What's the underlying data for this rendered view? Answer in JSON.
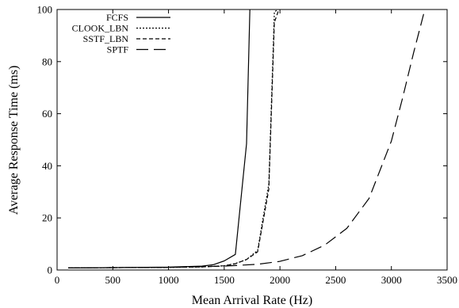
{
  "chart_data": {
    "type": "line",
    "title": "",
    "xlabel": "Mean Arrival Rate (Hz)",
    "ylabel": "Average Response Time (ms)",
    "xlim": [
      0,
      3500
    ],
    "ylim": [
      0,
      100
    ],
    "xticks": [
      0,
      500,
      1000,
      1500,
      2000,
      2500,
      3000,
      3500
    ],
    "yticks": [
      0,
      20,
      40,
      60,
      80,
      100
    ],
    "grid": false,
    "legend_position": "top-left",
    "series": [
      {
        "name": "FCFS",
        "dash": "solid",
        "x": [
          100,
          500,
          1000,
          1300,
          1400,
          1500,
          1600,
          1700,
          1730
        ],
        "y": [
          0.8,
          0.9,
          1.1,
          1.5,
          2.0,
          3.5,
          6.0,
          48.5,
          100
        ]
      },
      {
        "name": "CLOOK_LBN",
        "dash": "dotted",
        "x": [
          100,
          500,
          1000,
          1300,
          1500,
          1600,
          1700,
          1800,
          1900,
          1950,
          1980
        ],
        "y": [
          0.8,
          0.9,
          1.0,
          1.2,
          1.6,
          2.5,
          4.0,
          7.5,
          33.0,
          99.0,
          100
        ]
      },
      {
        "name": "SSTF_LBN",
        "dash": "dashed",
        "x": [
          100,
          500,
          1000,
          1300,
          1500,
          1600,
          1700,
          1800,
          1900,
          1950,
          1990
        ],
        "y": [
          0.8,
          0.9,
          1.0,
          1.2,
          1.6,
          2.4,
          4.0,
          7.0,
          31.0,
          95.0,
          100
        ]
      },
      {
        "name": "SPTF",
        "dash": "longdash",
        "x": [
          100,
          500,
          1000,
          1500,
          1800,
          2000,
          2200,
          2400,
          2600,
          2800,
          3000,
          3100,
          3200,
          3300
        ],
        "y": [
          0.8,
          0.9,
          1.0,
          1.5,
          2.2,
          3.3,
          5.5,
          9.5,
          16.0,
          27.5,
          49.5,
          66.0,
          83.5,
          100
        ]
      }
    ]
  }
}
